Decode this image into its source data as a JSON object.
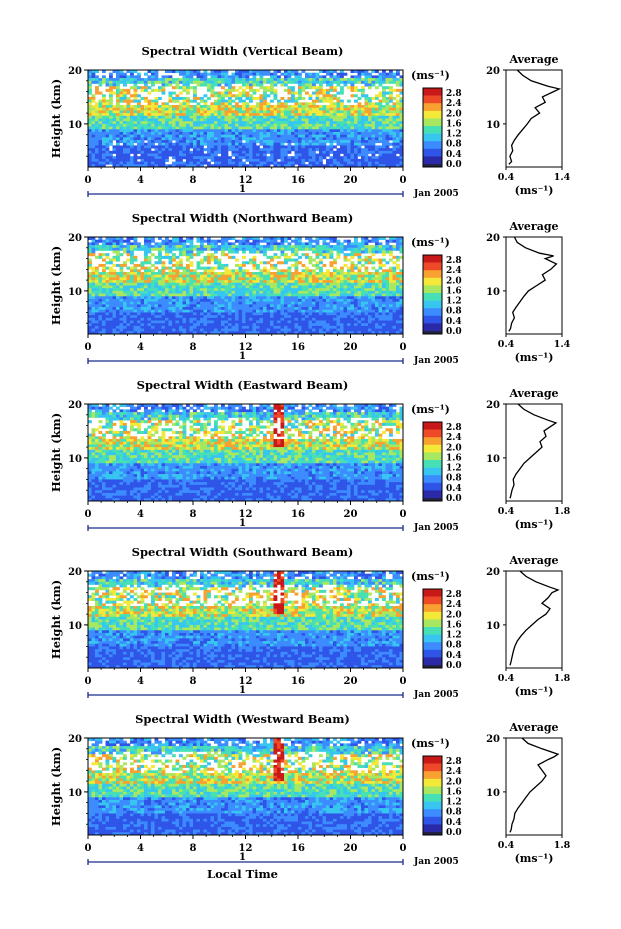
{
  "xlabel": "Local Time",
  "date_label": "Jan 2005",
  "day_marker": "1",
  "ylabel": "Height (km)",
  "unit_label": "(ms⁻¹)",
  "avg_title": "Average",
  "colorbar_ticks": [
    "2.8",
    "2.4",
    "2.0",
    "1.6",
    "1.2",
    "0.8",
    "0.4",
    "0.0"
  ],
  "colormap": [
    "#2a2aa8",
    "#2f55e8",
    "#3c8cff",
    "#37c6f0",
    "#46e0b4",
    "#a8e860",
    "#f4e838",
    "#f8a030",
    "#ee4a28",
    "#c81818"
  ],
  "chart_data": [
    {
      "type": "heatmap",
      "title": "Spectral Width (Vertical Beam)",
      "xlabel": "Local Time",
      "ylabel": "Height (km)",
      "x_ticks": [
        "0",
        "4",
        "8",
        "12",
        "16",
        "20",
        "0"
      ],
      "xlim": [
        0,
        24
      ],
      "y_ticks": [
        "20",
        "10"
      ],
      "ylim": [
        2,
        20
      ],
      "colorbar_range": [
        0.0,
        2.8
      ],
      "average_profile": {
        "title": "Average",
        "xlabel": "(ms⁻¹)",
        "x_ticks": [
          "0.4",
          "1.4"
        ],
        "xlim": [
          0.4,
          1.4
        ],
        "y_ticks": [
          "20",
          "10"
        ],
        "ylim": [
          2,
          20
        ],
        "height": [
          2.5,
          3,
          4,
          5,
          6,
          7,
          8,
          9,
          10,
          11,
          12,
          13,
          14,
          15,
          16,
          16.5,
          17,
          18,
          19,
          20
        ],
        "width": [
          0.45,
          0.5,
          0.47,
          0.52,
          0.5,
          0.55,
          0.62,
          0.7,
          0.78,
          0.85,
          1.0,
          0.92,
          1.1,
          1.05,
          1.25,
          1.35,
          1.15,
          0.85,
          0.7,
          0.6
        ]
      }
    },
    {
      "type": "heatmap",
      "title": "Spectral Width (Northward Beam)",
      "xlabel": "Local Time",
      "ylabel": "Height (km)",
      "x_ticks": [
        "0",
        "4",
        "8",
        "12",
        "16",
        "20",
        "0"
      ],
      "xlim": [
        0,
        24
      ],
      "y_ticks": [
        "20",
        "10"
      ],
      "ylim": [
        2,
        20
      ],
      "colorbar_range": [
        0.0,
        2.8
      ],
      "average_profile": {
        "title": "Average",
        "xlabel": "(ms⁻¹)",
        "x_ticks": [
          "0.4",
          "1.4"
        ],
        "xlim": [
          0.4,
          1.4
        ],
        "y_ticks": [
          "20",
          "10"
        ],
        "ylim": [
          2,
          20
        ],
        "height": [
          2.5,
          3,
          4,
          5,
          6,
          7,
          8,
          9,
          10,
          11,
          12,
          13,
          14,
          15,
          16,
          16.5,
          17,
          18,
          19,
          20
        ],
        "width": [
          0.45,
          0.48,
          0.5,
          0.55,
          0.52,
          0.58,
          0.65,
          0.72,
          0.8,
          0.95,
          1.1,
          1.05,
          1.2,
          1.3,
          1.1,
          1.25,
          1.0,
          0.75,
          0.6,
          0.55
        ]
      }
    },
    {
      "type": "heatmap",
      "title": "Spectral Width (Eastward Beam)",
      "xlabel": "Local Time",
      "ylabel": "Height (km)",
      "x_ticks": [
        "0",
        "4",
        "8",
        "12",
        "16",
        "20",
        "0"
      ],
      "xlim": [
        0,
        24
      ],
      "y_ticks": [
        "20",
        "10"
      ],
      "ylim": [
        2,
        20
      ],
      "colorbar_range": [
        0.0,
        2.8
      ],
      "average_profile": {
        "title": "Average",
        "xlabel": "(ms⁻¹)",
        "x_ticks": [
          "0.4",
          "1.8"
        ],
        "xlim": [
          0.4,
          1.8
        ],
        "y_ticks": [
          "20",
          "10"
        ],
        "ylim": [
          2,
          20
        ],
        "height": [
          2.5,
          3,
          4,
          5,
          6,
          7,
          8,
          9,
          10,
          11,
          12,
          13,
          14,
          15,
          16,
          16.5,
          17,
          18,
          19,
          20
        ],
        "width": [
          0.5,
          0.52,
          0.55,
          0.6,
          0.58,
          0.65,
          0.75,
          0.85,
          1.0,
          1.15,
          1.3,
          1.25,
          1.4,
          1.35,
          1.55,
          1.65,
          1.45,
          1.1,
          0.85,
          0.7
        ]
      }
    },
    {
      "type": "heatmap",
      "title": "Spectral Width (Southward Beam)",
      "xlabel": "Local Time",
      "ylabel": "Height (km)",
      "x_ticks": [
        "0",
        "4",
        "8",
        "12",
        "16",
        "20",
        "0"
      ],
      "xlim": [
        0,
        24
      ],
      "y_ticks": [
        "20",
        "10"
      ],
      "ylim": [
        2,
        20
      ],
      "colorbar_range": [
        0.0,
        2.8
      ],
      "average_profile": {
        "title": "Average",
        "xlabel": "(ms⁻¹)",
        "x_ticks": [
          "0.4",
          "1.8"
        ],
        "xlim": [
          0.4,
          1.8
        ],
        "y_ticks": [
          "20",
          "10"
        ],
        "ylim": [
          2,
          20
        ],
        "height": [
          2.5,
          3,
          4,
          5,
          6,
          7,
          8,
          9,
          10,
          11,
          12,
          13,
          14,
          15,
          16,
          16.5,
          17,
          18,
          19,
          20
        ],
        "width": [
          0.5,
          0.52,
          0.55,
          0.58,
          0.62,
          0.68,
          0.78,
          0.9,
          1.05,
          1.2,
          1.4,
          1.5,
          1.3,
          1.45,
          1.55,
          1.7,
          1.5,
          1.15,
          0.9,
          0.75
        ]
      }
    },
    {
      "type": "heatmap",
      "title": "Spectral Width (Westward Beam)",
      "xlabel": "Local Time",
      "ylabel": "Height (km)",
      "x_ticks": [
        "0",
        "4",
        "8",
        "12",
        "16",
        "20",
        "0"
      ],
      "xlim": [
        0,
        24
      ],
      "y_ticks": [
        "20",
        "10"
      ],
      "ylim": [
        2,
        20
      ],
      "colorbar_range": [
        0.0,
        2.8
      ],
      "average_profile": {
        "title": "Average",
        "xlabel": "(ms⁻¹)",
        "x_ticks": [
          "0.4",
          "1.8"
        ],
        "xlim": [
          0.4,
          1.8
        ],
        "y_ticks": [
          "20",
          "10"
        ],
        "ylim": [
          2,
          20
        ],
        "height": [
          2.5,
          3,
          4,
          5,
          6,
          7,
          8,
          9,
          10,
          11,
          12,
          13,
          14,
          15,
          16,
          16.5,
          17,
          18,
          19,
          20
        ],
        "width": [
          0.5,
          0.53,
          0.55,
          0.6,
          0.62,
          0.7,
          0.8,
          0.9,
          1.0,
          1.15,
          1.3,
          1.4,
          1.3,
          1.2,
          1.45,
          1.6,
          1.7,
          1.3,
          0.95,
          0.8
        ]
      }
    }
  ]
}
